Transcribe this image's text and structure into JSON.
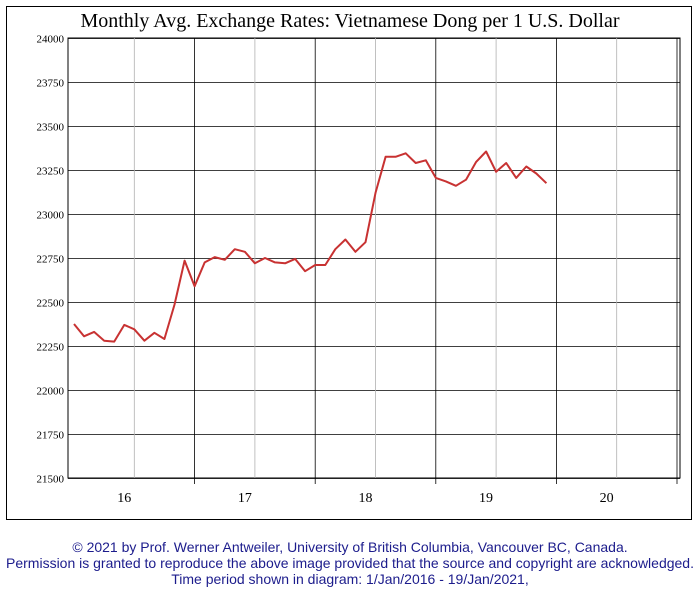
{
  "chart_data": {
    "type": "line",
    "title": "Monthly Avg. Exchange Rates: Vietnamese Dong per 1 U.S. Dollar",
    "xlabel": "",
    "ylabel": "",
    "ylim": [
      21500,
      24000
    ],
    "y_ticks": [
      21500,
      21750,
      22000,
      22250,
      22500,
      22750,
      23000,
      23250,
      23500,
      23750,
      24000
    ],
    "x_tick_labels": [
      "16",
      "17",
      "18",
      "19",
      "20"
    ],
    "grid": true,
    "series": [
      {
        "color": "#c83232",
        "x": [
          "2016-01",
          "2016-02",
          "2016-03",
          "2016-04",
          "2016-05",
          "2016-06",
          "2016-07",
          "2016-08",
          "2016-09",
          "2016-10",
          "2016-11",
          "2016-12",
          "2017-01",
          "2017-02",
          "2017-03",
          "2017-04",
          "2017-05",
          "2017-06",
          "2017-07",
          "2017-08",
          "2017-09",
          "2017-10",
          "2017-11",
          "2017-12",
          "2018-01",
          "2018-02",
          "2018-03",
          "2018-04",
          "2018-05",
          "2018-06",
          "2018-07",
          "2018-08",
          "2018-09",
          "2018-10",
          "2018-11",
          "2018-12",
          "2019-01",
          "2019-02",
          "2019-03",
          "2019-04",
          "2019-05",
          "2019-06",
          "2019-07",
          "2019-08",
          "2019-09",
          "2019-10",
          "2019-11",
          "2019-12",
          "2020-01"
        ],
        "values": [
          22375,
          22305,
          22330,
          22280,
          22275,
          22370,
          22345,
          22280,
          22325,
          22290,
          22485,
          22735,
          22590,
          22725,
          22755,
          22740,
          22800,
          22785,
          22720,
          22750,
          22725,
          22720,
          22745,
          22675,
          22710,
          22710,
          22800,
          22855,
          22785,
          22840,
          23120,
          23325,
          23325,
          23345,
          23290,
          23305,
          23205,
          23185,
          23160,
          23195,
          23295,
          23355,
          23240,
          23290,
          23205,
          23270,
          23230,
          23175,
          null
        ]
      }
    ]
  },
  "footer": {
    "copyright": "© 2021 by Prof. Werner Antweiler, University of British Columbia, Vancouver BC, Canada.",
    "permission": "Permission is granted to reproduce the above image provided that the source and copyright are acknowledged.",
    "period": "Time period shown in diagram: 1/Jan/2016 - 19/Jan/2021,"
  },
  "colors": {
    "line": "#c83232",
    "grid_major": "#000000",
    "grid_minor": "#b0b0b0",
    "footer_text": "#1c1c8c"
  }
}
